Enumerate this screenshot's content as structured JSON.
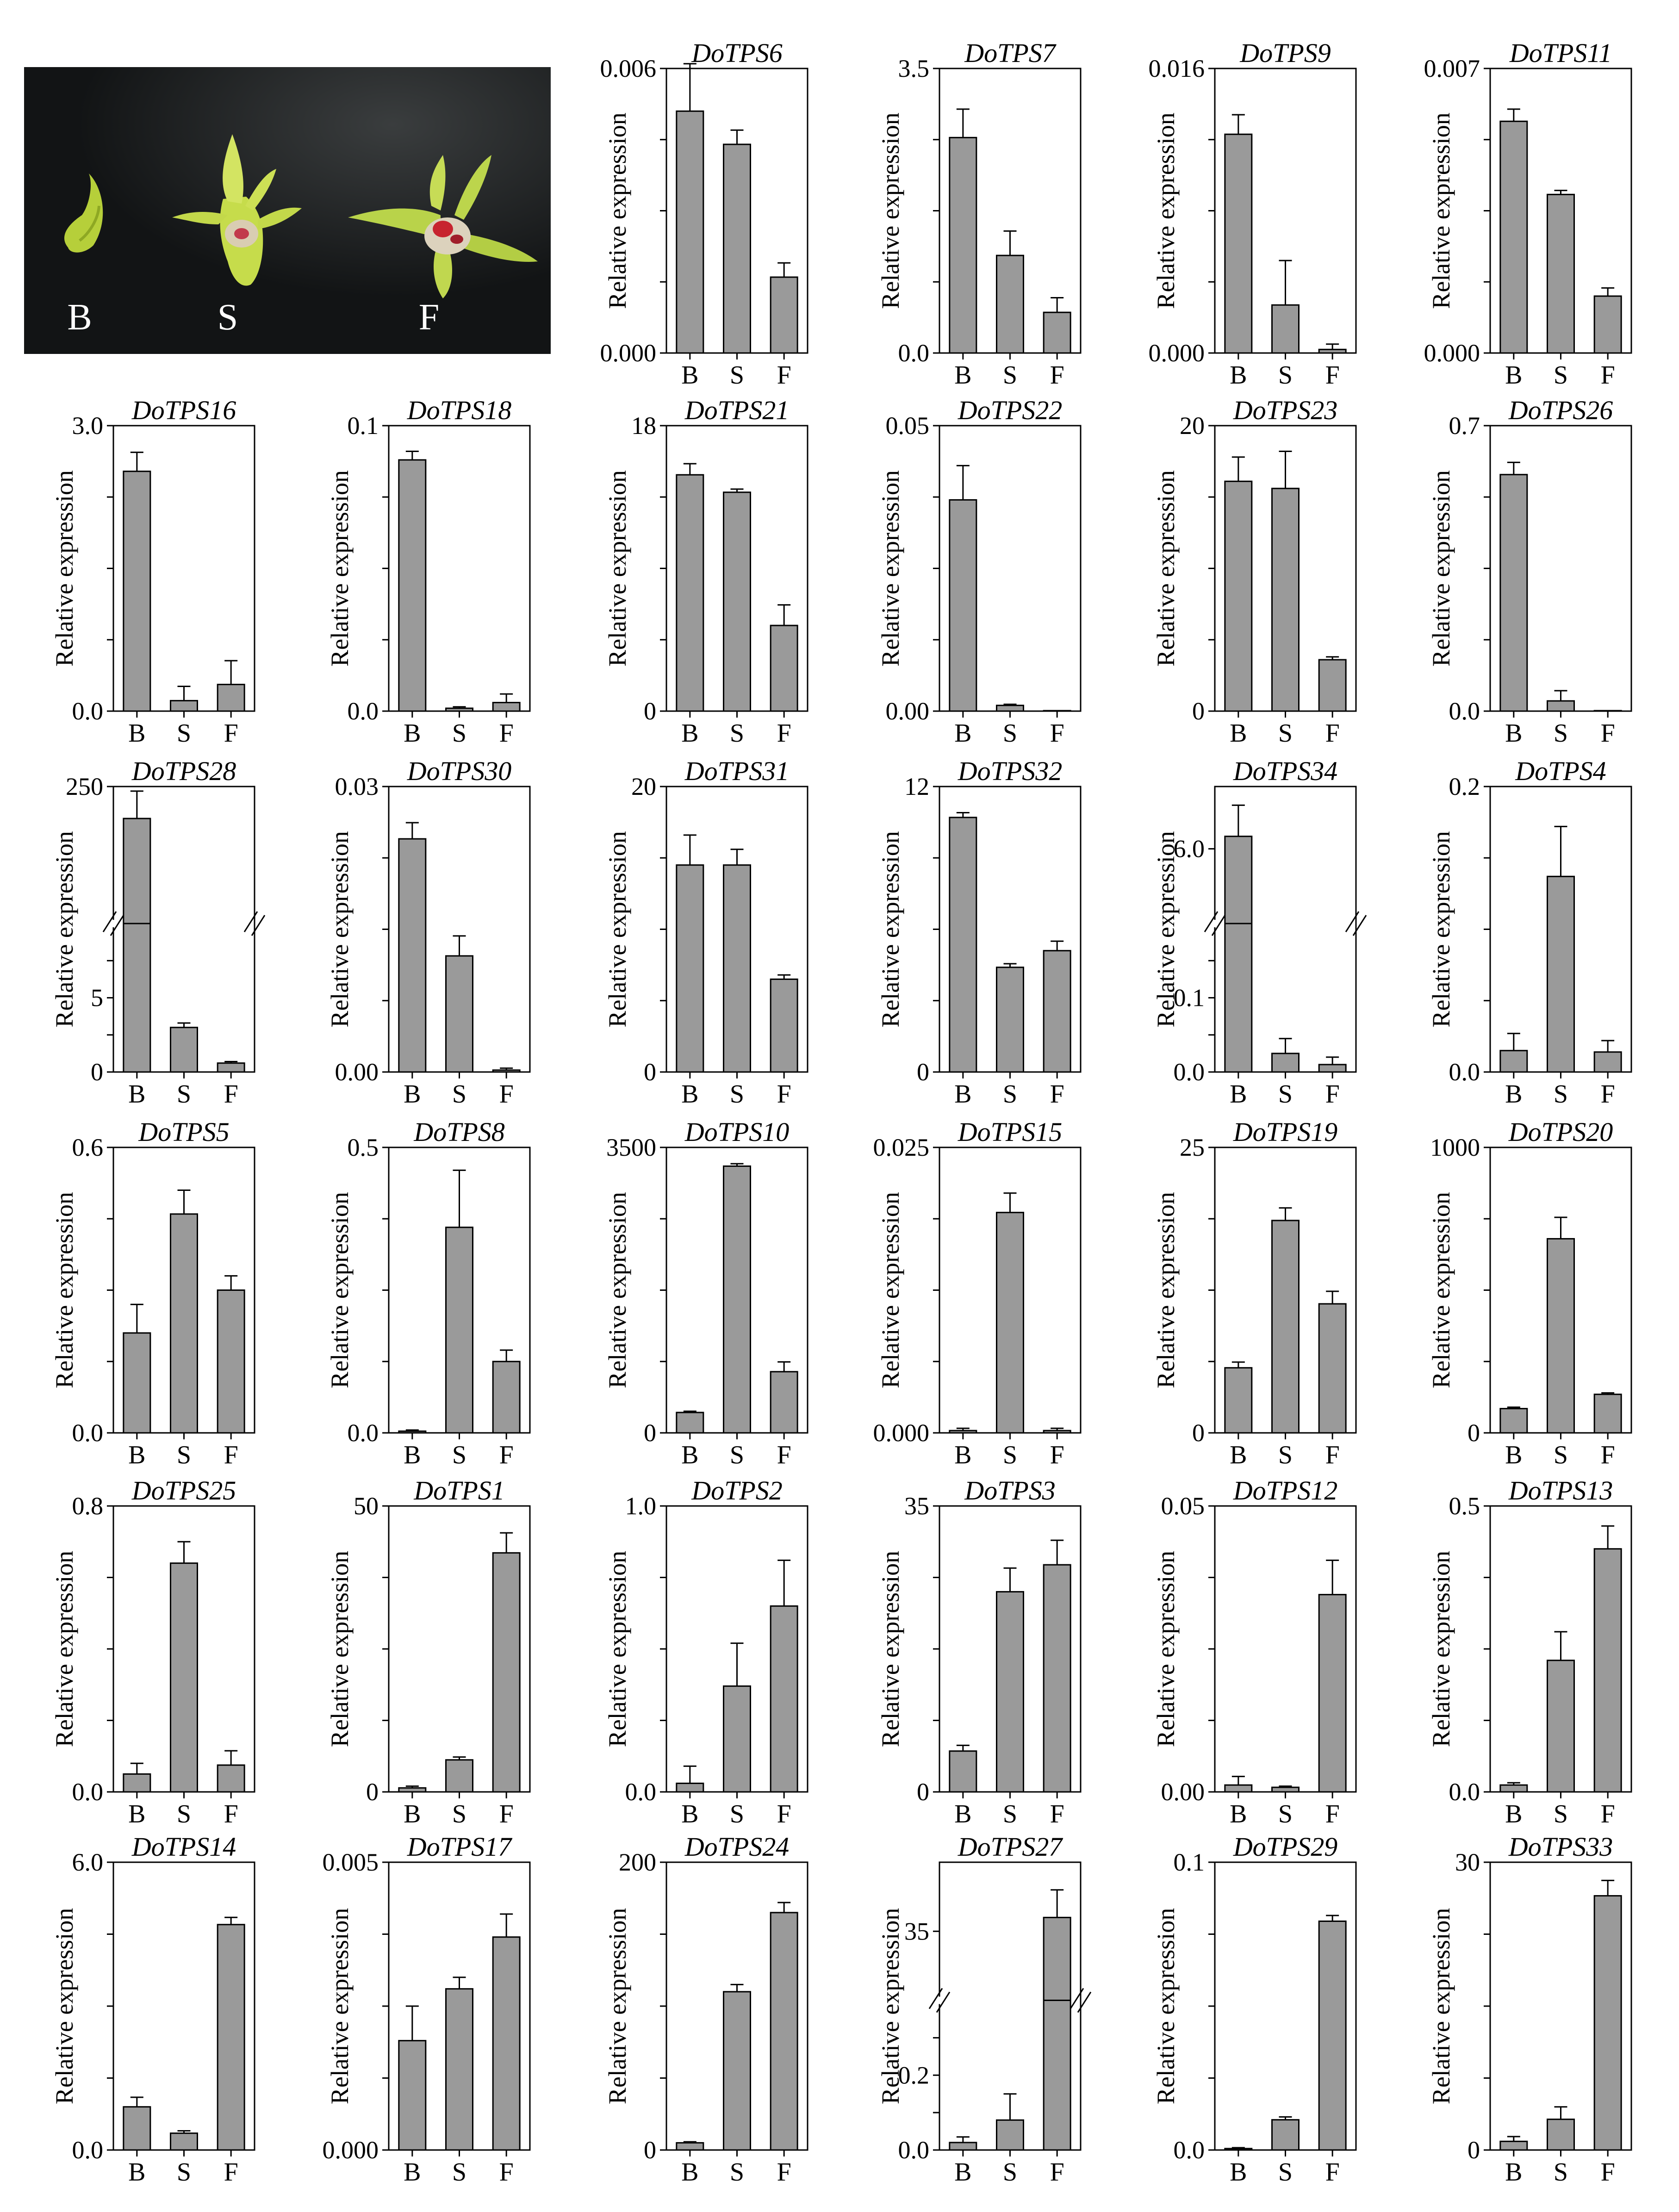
{
  "photo": {
    "labels": [
      "B",
      "S",
      "F"
    ]
  },
  "colors": {
    "bar": "#9a9a9a",
    "axis": "#000000",
    "photo_bg": "#151718"
  },
  "ylabel": "Relative expression",
  "chart_data": [
    {
      "type": "bar",
      "title": "DoTPS6",
      "categories": [
        "B",
        "S",
        "F"
      ],
      "values": [
        0.0051,
        0.0044,
        0.0016
      ],
      "errors": [
        0.001,
        0.0003,
        0.0003
      ],
      "ylim": [
        0,
        0.006
      ],
      "ytick_labels": [
        "0.000",
        "0.006"
      ]
    },
    {
      "type": "bar",
      "title": "DoTPS7",
      "categories": [
        "B",
        "S",
        "F"
      ],
      "values": [
        2.65,
        1.2,
        0.5
      ],
      "errors": [
        0.35,
        0.3,
        0.18
      ],
      "ylim": [
        0,
        3.5
      ],
      "ytick_labels": [
        "0.0",
        "3.5"
      ]
    },
    {
      "type": "bar",
      "title": "DoTPS9",
      "categories": [
        "B",
        "S",
        "F"
      ],
      "values": [
        0.0123,
        0.0027,
        0.0002
      ],
      "errors": [
        0.0011,
        0.0025,
        0.0003
      ],
      "ylim": [
        0,
        0.016
      ],
      "ytick_labels": [
        "0.000",
        "0.016"
      ]
    },
    {
      "type": "bar",
      "title": "DoTPS11",
      "categories": [
        "B",
        "S",
        "F"
      ],
      "values": [
        0.0057,
        0.0039,
        0.0014
      ],
      "errors": [
        0.0003,
        0.0001,
        0.0002
      ],
      "ylim": [
        0,
        0.007
      ],
      "ytick_labels": [
        "0.000",
        "0.007"
      ]
    },
    {
      "type": "bar",
      "title": "DoTPS16",
      "categories": [
        "B",
        "S",
        "F"
      ],
      "values": [
        2.52,
        0.11,
        0.28
      ],
      "errors": [
        0.2,
        0.15,
        0.25
      ],
      "ylim": [
        0,
        3.0
      ],
      "ytick_labels": [
        "0.0",
        "3.0"
      ]
    },
    {
      "type": "bar",
      "title": "DoTPS18",
      "categories": [
        "B",
        "S",
        "F"
      ],
      "values": [
        0.088,
        0.001,
        0.003
      ],
      "errors": [
        0.003,
        0.0005,
        0.003
      ],
      "ylim": [
        0,
        0.1
      ],
      "ytick_labels": [
        "0.0",
        "0.1"
      ]
    },
    {
      "type": "bar",
      "title": "DoTPS21",
      "categories": [
        "B",
        "S",
        "F"
      ],
      "values": [
        14.9,
        13.8,
        5.4
      ],
      "errors": [
        0.7,
        0.2,
        1.3
      ],
      "ylim": [
        0,
        18
      ],
      "ytick_labels": [
        "0",
        "18"
      ]
    },
    {
      "type": "bar",
      "title": "DoTPS22",
      "categories": [
        "B",
        "S",
        "F"
      ],
      "values": [
        0.037,
        0.001,
        0
      ],
      "errors": [
        0.006,
        0.0002,
        0
      ],
      "ylim": [
        0,
        0.05
      ],
      "ytick_labels": [
        "0.00",
        "0.05"
      ]
    },
    {
      "type": "bar",
      "title": "DoTPS23",
      "categories": [
        "B",
        "S",
        "F"
      ],
      "values": [
        16.1,
        15.6,
        3.6
      ],
      "errors": [
        1.7,
        2.6,
        0.2
      ],
      "ylim": [
        0,
        20
      ],
      "ytick_labels": [
        "0",
        "20"
      ]
    },
    {
      "type": "bar",
      "title": "DoTPS26",
      "categories": [
        "B",
        "S",
        "F"
      ],
      "values": [
        0.58,
        0.025,
        0
      ],
      "errors": [
        0.03,
        0.025,
        0
      ],
      "ylim": [
        0,
        0.7
      ],
      "ytick_labels": [
        "0.0",
        "0.7"
      ]
    },
    {
      "type": "bar",
      "title": "DoTPS28",
      "categories": [
        "B",
        "S",
        "F"
      ],
      "values": [
        215,
        3,
        0.6
      ],
      "errors": [
        30,
        0.3,
        0.1
      ],
      "axis_break": true,
      "segments": [
        {
          "range": [
            0,
            10
          ],
          "tick_labels": [
            "0",
            "5"
          ]
        },
        {
          "range": [
            100,
            250
          ],
          "tick_labels": [
            "250"
          ]
        }
      ]
    },
    {
      "type": "bar",
      "title": "DoTPS30",
      "categories": [
        "B",
        "S",
        "F"
      ],
      "values": [
        0.0245,
        0.0122,
        0.0002
      ],
      "errors": [
        0.0017,
        0.0021,
        0.0002
      ],
      "ylim": [
        0,
        0.03
      ],
      "ytick_labels": [
        "0.00",
        "0.03"
      ]
    },
    {
      "type": "bar",
      "title": "DoTPS31",
      "categories": [
        "B",
        "S",
        "F"
      ],
      "values": [
        14.5,
        14.5,
        6.5
      ],
      "errors": [
        2.1,
        1.1,
        0.3
      ],
      "ylim": [
        0,
        20
      ],
      "ytick_labels": [
        "0",
        "20"
      ]
    },
    {
      "type": "bar",
      "title": "DoTPS32",
      "categories": [
        "B",
        "S",
        "F"
      ],
      "values": [
        10.7,
        4.4,
        5.1
      ],
      "errors": [
        0.2,
        0.15,
        0.4
      ],
      "ylim": [
        0,
        12
      ],
      "ytick_labels": [
        "0",
        "12"
      ]
    },
    {
      "type": "bar",
      "title": "DoTPS34",
      "categories": [
        "B",
        "S",
        "F"
      ],
      "values": [
        6.2,
        0.025,
        0.01
      ],
      "errors": [
        0.5,
        0.02,
        0.01
      ],
      "axis_break": true,
      "segments": [
        {
          "range": [
            0,
            0.2
          ],
          "tick_labels": [
            "0.0",
            "0.1"
          ]
        },
        {
          "range": [
            4.8,
            7.0
          ],
          "tick_labels": [
            "6.0"
          ]
        }
      ]
    },
    {
      "type": "bar",
      "title": "DoTPS4",
      "categories": [
        "B",
        "S",
        "F"
      ],
      "values": [
        0.015,
        0.137,
        0.014
      ],
      "errors": [
        0.012,
        0.035,
        0.008
      ],
      "ylim": [
        0,
        0.2
      ],
      "ytick_labels": [
        "0.0",
        "0.2"
      ]
    },
    {
      "type": "bar",
      "title": "DoTPS5",
      "categories": [
        "B",
        "S",
        "F"
      ],
      "values": [
        0.21,
        0.46,
        0.3
      ],
      "errors": [
        0.06,
        0.05,
        0.03
      ],
      "ylim": [
        0,
        0.6
      ],
      "ytick_labels": [
        "0.0",
        "0.6"
      ]
    },
    {
      "type": "bar",
      "title": "DoTPS8",
      "categories": [
        "B",
        "S",
        "F"
      ],
      "values": [
        0.003,
        0.36,
        0.125
      ],
      "errors": [
        0.002,
        0.1,
        0.02
      ],
      "ylim": [
        0,
        0.5
      ],
      "ytick_labels": [
        "0.0",
        "0.5"
      ]
    },
    {
      "type": "bar",
      "title": "DoTPS10",
      "categories": [
        "B",
        "S",
        "F"
      ],
      "values": [
        250,
        3270,
        750
      ],
      "errors": [
        15,
        30,
        120
      ],
      "ylim": [
        0,
        3500
      ],
      "ytick_labels": [
        "0",
        "3500"
      ]
    },
    {
      "type": "bar",
      "title": "DoTPS15",
      "categories": [
        "B",
        "S",
        "F"
      ],
      "values": [
        0.0002,
        0.0193,
        0.0002
      ],
      "errors": [
        0.0002,
        0.0017,
        0.0002
      ],
      "ylim": [
        0,
        0.025
      ],
      "ytick_labels": [
        "0.000",
        "0.025"
      ]
    },
    {
      "type": "bar",
      "title": "DoTPS19",
      "categories": [
        "B",
        "S",
        "F"
      ],
      "values": [
        5.7,
        18.6,
        11.3
      ],
      "errors": [
        0.5,
        1.1,
        1.1
      ],
      "ylim": [
        0,
        25
      ],
      "ytick_labels": [
        "0",
        "25"
      ]
    },
    {
      "type": "bar",
      "title": "DoTPS20",
      "categories": [
        "B",
        "S",
        "F"
      ],
      "values": [
        85,
        680,
        135
      ],
      "errors": [
        5,
        75,
        5
      ],
      "ylim": [
        0,
        1000
      ],
      "ytick_labels": [
        "0",
        "1000"
      ]
    },
    {
      "type": "bar",
      "title": "DoTPS25",
      "categories": [
        "B",
        "S",
        "F"
      ],
      "values": [
        0.05,
        0.64,
        0.075
      ],
      "errors": [
        0.03,
        0.06,
        0.04
      ],
      "ylim": [
        0,
        0.8
      ],
      "ytick_labels": [
        "0.0",
        "0.8"
      ]
    },
    {
      "type": "bar",
      "title": "DoTPS1",
      "categories": [
        "B",
        "S",
        "F"
      ],
      "values": [
        0.7,
        5.6,
        41.8
      ],
      "errors": [
        0.3,
        0.5,
        3.5
      ],
      "ylim": [
        0,
        50
      ],
      "ytick_labels": [
        "0",
        "50"
      ]
    },
    {
      "type": "bar",
      "title": "DoTPS2",
      "categories": [
        "B",
        "S",
        "F"
      ],
      "values": [
        0.03,
        0.37,
        0.65
      ],
      "errors": [
        0.06,
        0.15,
        0.16
      ],
      "ylim": [
        0,
        1.0
      ],
      "ytick_labels": [
        "0.0",
        "1.0"
      ]
    },
    {
      "type": "bar",
      "title": "DoTPS3",
      "categories": [
        "B",
        "S",
        "F"
      ],
      "values": [
        5,
        24.5,
        27.8
      ],
      "errors": [
        0.7,
        2.9,
        3
      ],
      "ylim": [
        0,
        35
      ],
      "ytick_labels": [
        "0",
        "35"
      ]
    },
    {
      "type": "bar",
      "title": "DoTPS12",
      "categories": [
        "B",
        "S",
        "F"
      ],
      "values": [
        0.0012,
        0.0008,
        0.0345
      ],
      "errors": [
        0.0015,
        0.0002,
        0.006
      ],
      "ylim": [
        0,
        0.05
      ],
      "ytick_labels": [
        "0.00",
        "0.05"
      ]
    },
    {
      "type": "bar",
      "title": "DoTPS13",
      "categories": [
        "B",
        "S",
        "F"
      ],
      "values": [
        0.012,
        0.23,
        0.425
      ],
      "errors": [
        0.004,
        0.05,
        0.04
      ],
      "ylim": [
        0,
        0.5
      ],
      "ytick_labels": [
        "0.0",
        "0.5"
      ]
    },
    {
      "type": "bar",
      "title": "DoTPS14",
      "categories": [
        "B",
        "S",
        "F"
      ],
      "values": [
        0.9,
        0.35,
        4.7
      ],
      "errors": [
        0.2,
        0.05,
        0.15
      ],
      "ylim": [
        0,
        6.0
      ],
      "ytick_labels": [
        "0.0",
        "6.0"
      ]
    },
    {
      "type": "bar",
      "title": "DoTPS17",
      "categories": [
        "B",
        "S",
        "F"
      ],
      "values": [
        0.0019,
        0.0028,
        0.0037
      ],
      "errors": [
        0.0006,
        0.0002,
        0.0004
      ],
      "ylim": [
        0,
        0.005
      ],
      "ytick_labels": [
        "0.000",
        "0.005"
      ]
    },
    {
      "type": "bar",
      "title": "DoTPS24",
      "categories": [
        "B",
        "S",
        "F"
      ],
      "values": [
        5,
        110,
        165
      ],
      "errors": [
        0.7,
        5,
        7
      ],
      "ylim": [
        0,
        200
      ],
      "ytick_labels": [
        "0",
        "200"
      ]
    },
    {
      "type": "bar",
      "title": "DoTPS27",
      "categories": [
        "B",
        "S",
        "F"
      ],
      "values": [
        0.02,
        0.08,
        37
      ],
      "errors": [
        0.015,
        0.07,
        4
      ],
      "axis_break": true,
      "segments": [
        {
          "range": [
            0,
            0.4
          ],
          "tick_labels": [
            "0.0",
            "0.2"
          ]
        },
        {
          "range": [
            25,
            45
          ],
          "tick_labels": [
            "35"
          ]
        }
      ]
    },
    {
      "type": "bar",
      "title": "DoTPS29",
      "categories": [
        "B",
        "S",
        "F"
      ],
      "values": [
        0.0005,
        0.0105,
        0.0795
      ],
      "errors": [
        0.0003,
        0.001,
        0.002
      ],
      "ylim": [
        0,
        0.1
      ],
      "ytick_labels": [
        "0.0",
        "0.1"
      ]
    },
    {
      "type": "bar",
      "title": "DoTPS33",
      "categories": [
        "B",
        "S",
        "F"
      ],
      "values": [
        0.9,
        3.2,
        26.5
      ],
      "errors": [
        0.5,
        1.3,
        1.6
      ],
      "ylim": [
        0,
        30
      ],
      "ytick_labels": [
        "0",
        "30"
      ]
    }
  ]
}
